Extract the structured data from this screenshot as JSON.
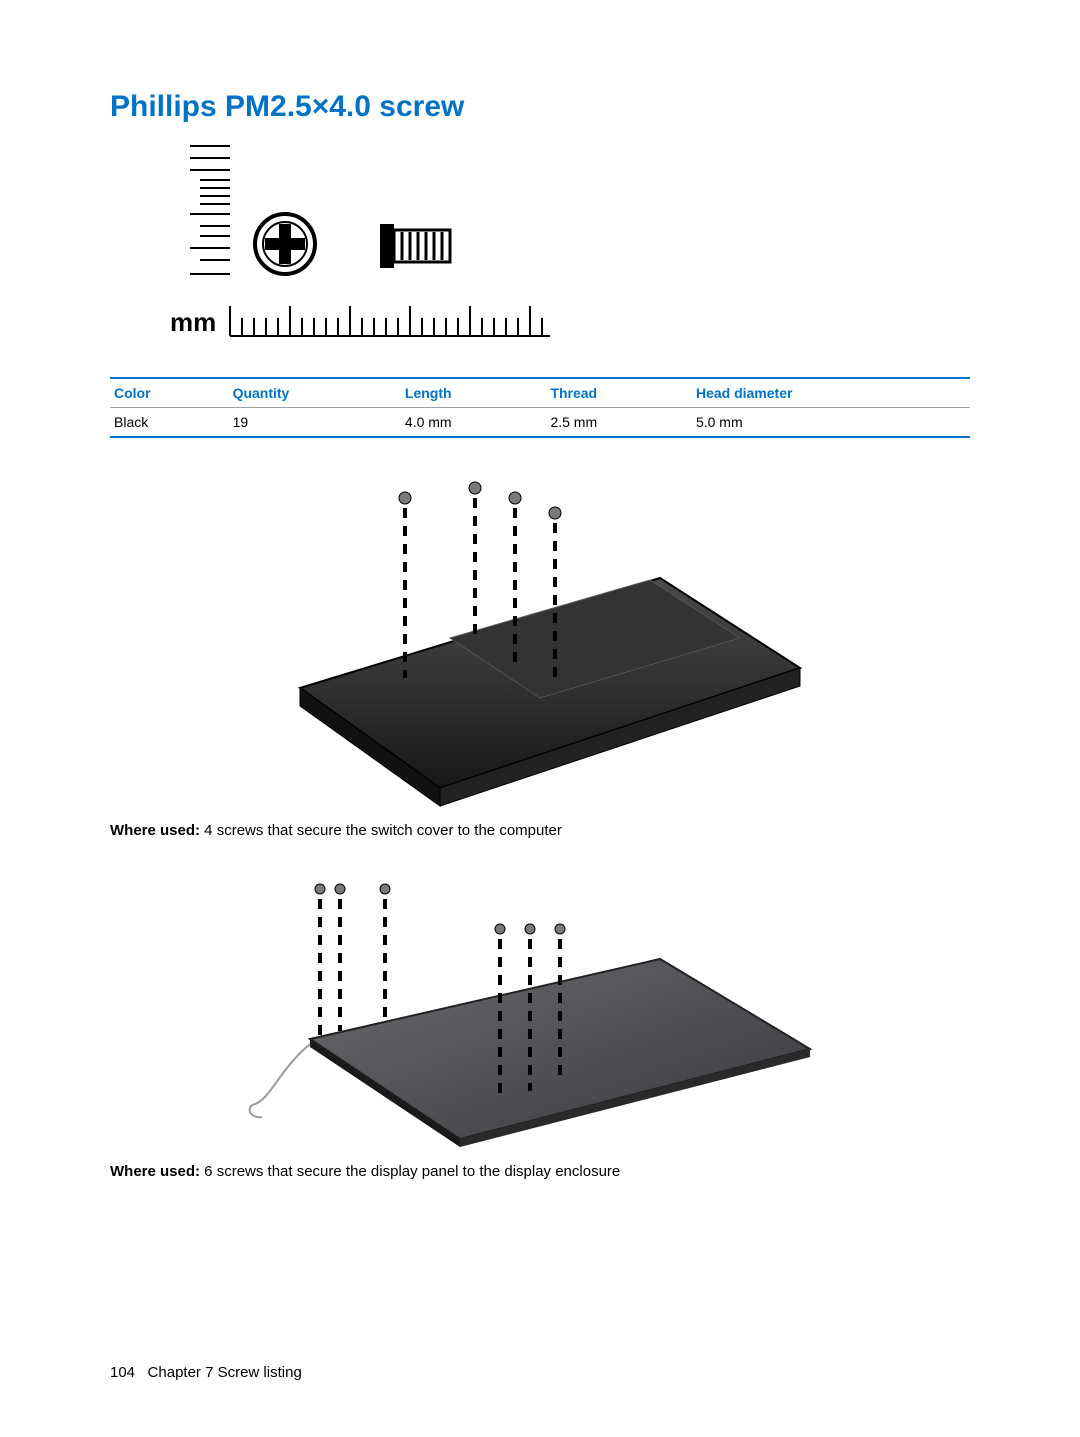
{
  "title": "Phillips PM2.5×4.0 screw",
  "title_color": "#0073c8",
  "ruler_unit_label": "mm",
  "table": {
    "border_color_top_bottom": "#0073c8",
    "border_color_mid": "#9fa0a0",
    "header_color": "#0073c8",
    "columns": [
      "Color",
      "Quantity",
      "Length",
      "Thread",
      "Head diameter"
    ],
    "rows": [
      [
        "Black",
        "19",
        "4.0 mm",
        "2.5 mm",
        "5.0 mm"
      ]
    ]
  },
  "caption1_label": "Where used:",
  "caption1_text": " 4 screws that secure the switch cover to the computer",
  "caption2_label": "Where used:",
  "caption2_text": " 6 screws that secure the display panel to the display enclosure",
  "footer_page": "104",
  "footer_chapter": "Chapter 7   Screw listing",
  "illustration": {
    "laptop_body_color": "#2b2b2b",
    "laptop_edge_color": "#555555",
    "panel_color": "#555558",
    "panel_edge_color": "#2a2a2a",
    "screw_line_color": "#000000",
    "screw_head_color": "#7a7a7a",
    "wire_color": "#9a9a9a"
  }
}
